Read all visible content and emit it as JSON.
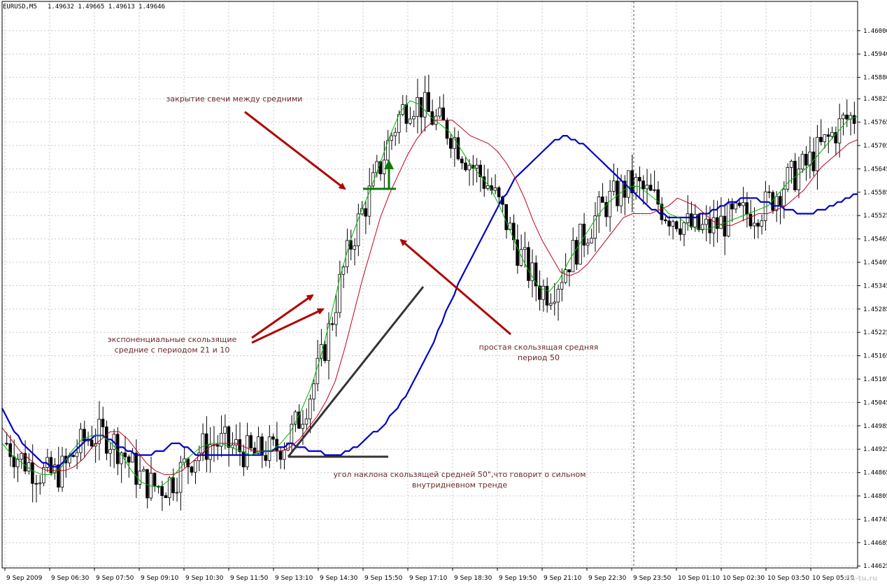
{
  "window": {
    "title": "EURUSD,M5",
    "quote": "1.49632 1.49665 1.49613 1.49646"
  },
  "colors": {
    "background": "#ffffff",
    "grid": "#c8c8c8",
    "candle": "#000000",
    "ema_fast": "#00b400",
    "ema_slow": "#c00020",
    "sma": "#0000c8",
    "arrow": "#b00000",
    "annotation_text": "#6a2a2a",
    "angle_lines": "#333333",
    "up_arrow": "#0a7a0a"
  },
  "watermark": "fin-tu.ru",
  "chart_data": {
    "type": "line",
    "instrument": "EURUSD",
    "timeframe": "M5",
    "y_axis": {
      "min": 1.4462,
      "max": 1.4605,
      "ticks": [
        "1.46000",
        "1.45940",
        "1.45880",
        "1.45825",
        "1.45765",
        "1.45705",
        "1.45645",
        "1.45585",
        "1.45525",
        "1.45465",
        "1.45405",
        "1.45345",
        "1.45285",
        "1.45225",
        "1.45165",
        "1.45105",
        "1.45045",
        "1.44985",
        "1.44925",
        "1.44865",
        "1.44805",
        "1.44745",
        "1.44685",
        "1.44625"
      ]
    },
    "x_axis": {
      "labels": [
        "9 Sep 2009",
        "9 Sep 06:30",
        "9 Sep 07:50",
        "9 Sep 09:10",
        "9 Sep 10:30",
        "9 Sep 11:50",
        "9 Sep 13:10",
        "9 Sep 14:30",
        "9 Sep 15:50",
        "9 Sep 17:10",
        "9 Sep 18:30",
        "9 Sep 19:50",
        "9 Sep 21:10",
        "9 Sep 22:30",
        "9 Sep 23:50",
        "10 Sep 01:10",
        "10 Sep 02:30",
        "10 Sep 03:50",
        "10 Sep 05:10"
      ]
    },
    "grid": true,
    "series": [
      {
        "key": "sma",
        "values": [
          1.4503,
          1.4501,
          1.4499,
          1.4497,
          1.4496,
          1.4494,
          1.4493,
          1.4492,
          1.4491,
          1.449,
          1.4489,
          1.4489,
          1.4488,
          1.4488,
          1.4488,
          1.4489,
          1.449,
          1.4491,
          1.4492,
          1.4493,
          1.4494,
          1.4495,
          1.4495,
          1.4496,
          1.4496,
          1.4496,
          1.4495,
          1.4495,
          1.4494,
          1.4493,
          1.4493,
          1.4492,
          1.4492,
          1.4491,
          1.4491,
          1.4491,
          1.4491,
          1.4491,
          1.4492,
          1.4492,
          1.4492,
          1.4493,
          1.4494,
          1.4494,
          1.4494,
          1.4493,
          1.4493,
          1.4492,
          1.4491,
          1.4491,
          1.4491,
          1.4491,
          1.4491,
          1.4491,
          1.4491,
          1.4491,
          1.4491,
          1.4491,
          1.4491,
          1.4491,
          1.4491,
          1.4491,
          1.4491,
          1.4491,
          1.4491,
          1.4492,
          1.4492,
          1.4492,
          1.4493,
          1.4493,
          1.4493,
          1.4494,
          1.4494,
          1.4493,
          1.4493,
          1.4493,
          1.4492,
          1.4492,
          1.4492,
          1.4492,
          1.4491,
          1.4491,
          1.4491,
          1.4491,
          1.4491,
          1.4492,
          1.4492,
          1.4493,
          1.4493,
          1.4494,
          1.4495,
          1.4496,
          1.4497,
          1.4497,
          1.4498,
          1.4499,
          1.4501,
          1.4502,
          1.4503,
          1.4505,
          1.4506,
          1.4508,
          1.451,
          1.4512,
          1.4514,
          1.4516,
          1.4518,
          1.452,
          1.4523,
          1.4525,
          1.4528,
          1.453,
          1.4532,
          1.4535,
          1.4537,
          1.4539,
          1.4541,
          1.4543,
          1.4545,
          1.4547,
          1.4549,
          1.4551,
          1.4553,
          1.4555,
          1.4557,
          1.4558,
          1.456,
          1.4562,
          1.4563,
          1.4564,
          1.4565,
          1.4566,
          1.4567,
          1.4568,
          1.4569,
          1.457,
          1.4571,
          1.4572,
          1.4572,
          1.4573,
          1.4573,
          1.4572,
          1.4572,
          1.4571,
          1.4571,
          1.457,
          1.4569,
          1.4568,
          1.4567,
          1.4566,
          1.4565,
          1.4564,
          1.4563,
          1.4562,
          1.4561,
          1.456,
          1.4559,
          1.4558,
          1.4557,
          1.4556,
          1.4555,
          1.4554,
          1.4554,
          1.4553,
          1.4553,
          1.4552,
          1.4552,
          1.4552,
          1.4552,
          1.4552,
          1.4552,
          1.4552,
          1.4552,
          1.4553,
          1.4553,
          1.4553,
          1.4554,
          1.4554,
          1.4555,
          1.4555,
          1.4556,
          1.4556,
          1.4556,
          1.4557,
          1.4557,
          1.4557,
          1.4557,
          1.4557,
          1.4556,
          1.4556,
          1.4556,
          1.4555,
          1.4555,
          1.4555,
          1.4554,
          1.4554,
          1.4554,
          1.4553,
          1.4553,
          1.4553,
          1.4553,
          1.4553,
          1.4554,
          1.4554,
          1.4554,
          1.4555,
          1.4555,
          1.4556,
          1.4556,
          1.4557,
          1.4557,
          1.4558,
          1.4558
        ]
      },
      {
        "key": "ema21",
        "values": [
          1.4498,
          1.4495,
          1.4492,
          1.449,
          1.4488,
          1.4487,
          1.4487,
          1.4487,
          1.4488,
          1.449,
          1.4493,
          1.4495,
          1.4497,
          1.4497,
          1.4495,
          1.4492,
          1.4489,
          1.4487,
          1.4486,
          1.4486,
          1.4487,
          1.4489,
          1.4491,
          1.4493,
          1.4494,
          1.4494,
          1.4494,
          1.4493,
          1.4492,
          1.4492,
          1.4492,
          1.4492,
          1.4493,
          1.4495,
          1.4498,
          1.4501,
          1.4505,
          1.451,
          1.4518,
          1.4527,
          1.4536,
          1.4544,
          1.4552,
          1.4558,
          1.4563,
          1.4568,
          1.4572,
          1.4575,
          1.4577,
          1.4577,
          1.4577,
          1.4575,
          1.4573,
          1.4572,
          1.4571,
          1.4569,
          1.4566,
          1.4562,
          1.4557,
          1.4551,
          1.4546,
          1.4542,
          1.4538,
          1.4537,
          1.4538,
          1.454,
          1.4543,
          1.4546,
          1.4549,
          1.4552,
          1.4553,
          1.4553,
          1.4553,
          1.4554,
          1.4555,
          1.4557,
          1.4556,
          1.4555,
          1.4553,
          1.4551,
          1.455,
          1.455,
          1.4551,
          1.4552,
          1.4553,
          1.4553,
          1.4554,
          1.4555,
          1.4557,
          1.4559,
          1.4562,
          1.4565,
          1.4567,
          1.4569,
          1.4571,
          1.4572
        ]
      },
      {
        "key": "ema10",
        "values": [
          1.4494,
          1.4491,
          1.4489,
          1.4487,
          1.4486,
          1.4486,
          1.4488,
          1.4492,
          1.4495,
          1.4496,
          1.4496,
          1.4494,
          1.4491,
          1.4487,
          1.4484,
          1.4483,
          1.4483,
          1.4485,
          1.4488,
          1.4491,
          1.4493,
          1.4494,
          1.4494,
          1.4493,
          1.4492,
          1.4491,
          1.4492,
          1.4492,
          1.4494,
          1.4497,
          1.4502,
          1.4508,
          1.4516,
          1.4526,
          1.4537,
          1.4546,
          1.4553,
          1.4559,
          1.4566,
          1.4573,
          1.4579,
          1.4582,
          1.4581,
          1.4578,
          1.4576,
          1.4574,
          1.457,
          1.4566,
          1.4563,
          1.456,
          1.4555,
          1.4549,
          1.4543,
          1.4538,
          1.4534,
          1.4533,
          1.4536,
          1.4541,
          1.4545,
          1.4549,
          1.4553,
          1.4556,
          1.4558,
          1.456,
          1.456,
          1.4558,
          1.4556,
          1.4553,
          1.4552,
          1.455,
          1.4549,
          1.4549,
          1.455,
          1.4551,
          1.4552,
          1.4553,
          1.4554,
          1.4555,
          1.4558,
          1.4561,
          1.4563,
          1.4565,
          1.4568,
          1.4571,
          1.4574,
          1.4577,
          1.4578
        ]
      }
    ],
    "annotations": [
      {
        "key": "candle_close",
        "lines": [
          "закрытие свечи между средними"
        ]
      },
      {
        "key": "ema_note",
        "lines": [
          "экспоненциальные скользящие",
          "средние с периодом 21 и 10"
        ]
      },
      {
        "key": "sma_note",
        "lines": [
          "простая скользящая средняя",
          "период 50"
        ]
      },
      {
        "key": "angle_note",
        "lines": [
          "угол наклона скользящей средней 50\",что говорит о сильном",
          "внутридневном тренде"
        ]
      }
    ]
  }
}
